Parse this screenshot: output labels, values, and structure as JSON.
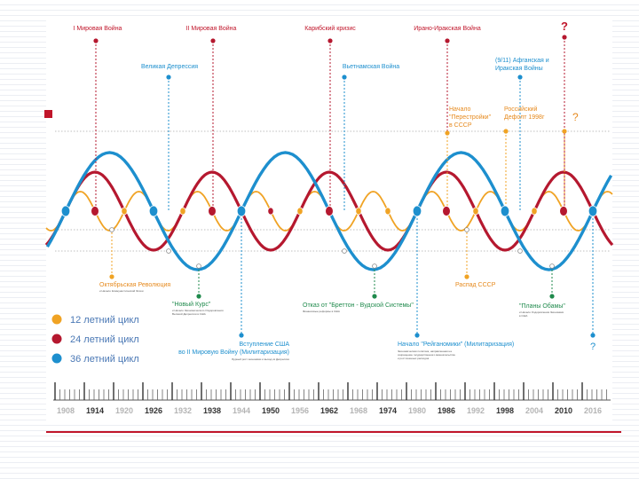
{
  "colors": {
    "orange": "#f0a324",
    "red": "#b5182f",
    "blue": "#1d8fce",
    "green": "#1f8a4c",
    "accent": "#c0152a",
    "grey": "#9a9a9a",
    "dark": "#333333"
  },
  "top_events": [
    {
      "label": "I Мировая Война",
      "color": "red"
    },
    {
      "label": "II Мировая Война",
      "color": "red"
    },
    {
      "label": "Карибский кризис",
      "color": "red"
    },
    {
      "label": "Ирано-Иракская Война",
      "color": "red"
    },
    {
      "label": "?",
      "color": "red"
    }
  ],
  "mid_events": [
    {
      "label": "Великая Депрессия",
      "color": "blue"
    },
    {
      "label": "Вьетнамская Война",
      "color": "blue"
    },
    {
      "label": "(9/11) Афганская и",
      "color": "blue"
    },
    {
      "label": "Иракская Войны",
      "color": "blue"
    }
  ],
  "orange_events": [
    {
      "label": "Начало"
    },
    {
      "label": "\"Перестройки\""
    },
    {
      "label": "в СССР"
    },
    {
      "label": "Российский"
    },
    {
      "label": "Дефолт 1998г"
    },
    {
      "label": "?"
    }
  ],
  "below_events": {
    "october_revolution": "Октябрьская Революция",
    "october_note": "и Начало Коммунистической Эпохи",
    "new_deal": "\"Новый Курс\"",
    "new_deal_note_1": "и Начало Экономического Оздоровления",
    "new_deal_note_2": "Великой Депрессии в США",
    "bretton": "Отказ от \"Бреттон - Вудской Системы\"",
    "bretton_note": "Финансовые реформы в США",
    "ussr_collapse": "Распад СССР",
    "obama_plans": "\"Планы Обамы\"",
    "obama_note_1": "и Начало Оздоровления Экономики",
    "obama_note_2": "в США",
    "usa_entry_1": "Вступление США",
    "usa_entry_2": "во II Мировую Войну (Милитаризация)",
    "usa_entry_note": "Бурный рост экономики и выход из Депрессии",
    "reaganomics": "Начало \"Рейганомики\" (Милитаризация)",
    "reaganomics_note_1": "Экономическая политика, направленная на",
    "reaganomics_note_2": "сокращение государственного вмешательства",
    "reaganomics_note_3": "и рост военных расходов",
    "question": "?"
  },
  "legend": [
    {
      "label": "12 летний цикл",
      "color": "orange"
    },
    {
      "label": "24 летний цикл",
      "color": "red"
    },
    {
      "label": "36 летний цикл",
      "color": "blue"
    }
  ],
  "timeline_years": [
    "1908",
    "1914",
    "1920",
    "1926",
    "1932",
    "1938",
    "1944",
    "1950",
    "1956",
    "1962",
    "1968",
    "1974",
    "1980",
    "1986",
    "1992",
    "1998",
    "2004",
    "2010",
    "2016"
  ],
  "highlighted_years": [
    "1914",
    "1926",
    "1938",
    "1950",
    "1962",
    "1974",
    "1986",
    "1998",
    "2010"
  ]
}
